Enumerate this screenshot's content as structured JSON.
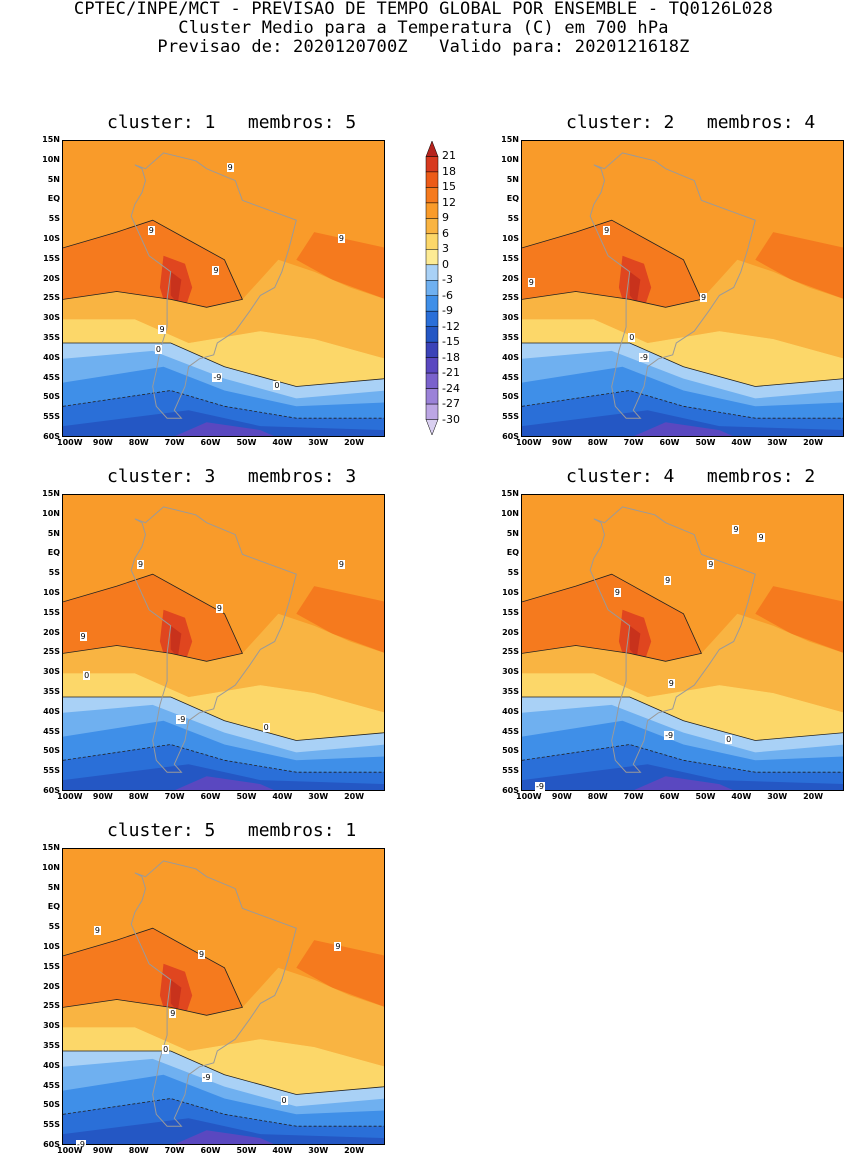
{
  "header": {
    "line1": "CPTEC/INPE/MCT - PREVISAO DE TEMPO GLOBAL POR ENSEMBLE - TQ0126L028",
    "line2": "Cluster Medio para a Temperatura (C) em 700 hPa",
    "line3": "Previsao de: 2020120700Z   Valido para: 2020121618Z"
  },
  "lat_labels": [
    "15N",
    "10N",
    "5N",
    "EQ",
    "5S",
    "10S",
    "15S",
    "20S",
    "25S",
    "30S",
    "35S",
    "40S",
    "45S",
    "50S",
    "55S",
    "60S"
  ],
  "lon_labels": [
    "100W",
    "90W",
    "80W",
    "70W",
    "60W",
    "50W",
    "40W",
    "30W",
    "20W"
  ],
  "legend": {
    "levels": [
      "21",
      "18",
      "15",
      "12",
      "9",
      "6",
      "3",
      "0",
      "-3",
      "-6",
      "-9",
      "-12",
      "-15",
      "-18",
      "-21",
      "-24",
      "-27",
      "-30"
    ],
    "colors": [
      "#b5231d",
      "#d73a1f",
      "#ec5b18",
      "#f57a1e",
      "#f99b2a",
      "#f9b442",
      "#fcd769",
      "#fdeb94",
      "#a9d1f6",
      "#6fb0f0",
      "#3f8fe8",
      "#2a6fd8",
      "#2457c4",
      "#3b43b8",
      "#5a48c0",
      "#7a62cc",
      "#9b82d8",
      "#bca6e4",
      "#d9cff0"
    ]
  },
  "panels": [
    {
      "title": "cluster: 1   membros: 5",
      "labels": [
        {
          "text": "9",
          "lat": 8,
          "lon": -53
        },
        {
          "text": "9",
          "lat": -8,
          "lon": -75
        },
        {
          "text": "9",
          "lat": -10,
          "lon": -22
        },
        {
          "text": "9",
          "lat": -18,
          "lon": -57
        },
        {
          "text": "9",
          "lat": -33,
          "lon": -72
        },
        {
          "text": "0",
          "lat": -38,
          "lon": -73
        },
        {
          "text": "-9",
          "lat": -45,
          "lon": -57
        },
        {
          "text": "0",
          "lat": -47,
          "lon": -40
        }
      ]
    },
    {
      "title": "cluster: 2   membros: 4",
      "labels": [
        {
          "text": "9",
          "lat": -8,
          "lon": -76
        },
        {
          "text": "9",
          "lat": -21,
          "lon": -97
        },
        {
          "text": "9",
          "lat": -25,
          "lon": -49
        },
        {
          "text": "0",
          "lat": -35,
          "lon": -69
        },
        {
          "text": "-9",
          "lat": -40,
          "lon": -66
        }
      ]
    },
    {
      "title": "cluster: 3   membros: 3",
      "labels": [
        {
          "text": "9",
          "lat": -3,
          "lon": -78
        },
        {
          "text": "9",
          "lat": -3,
          "lon": -22
        },
        {
          "text": "9",
          "lat": -14,
          "lon": -56
        },
        {
          "text": "9",
          "lat": -21,
          "lon": -94
        },
        {
          "text": "0",
          "lat": -31,
          "lon": -93
        },
        {
          "text": "-9",
          "lat": -42,
          "lon": -67
        },
        {
          "text": "0",
          "lat": -44,
          "lon": -43
        }
      ]
    },
    {
      "title": "cluster: 4   membros: 2",
      "labels": [
        {
          "text": "9",
          "lat": 6,
          "lon": -40
        },
        {
          "text": "9",
          "lat": 4,
          "lon": -33
        },
        {
          "text": "9",
          "lat": -3,
          "lon": -47
        },
        {
          "text": "9",
          "lat": -7,
          "lon": -59
        },
        {
          "text": "9",
          "lat": -10,
          "lon": -73
        },
        {
          "text": "9",
          "lat": -33,
          "lon": -58
        },
        {
          "text": "-9",
          "lat": -46,
          "lon": -59
        },
        {
          "text": "0",
          "lat": -47,
          "lon": -42
        },
        {
          "text": "-9",
          "lat": -59,
          "lon": -95
        }
      ]
    },
    {
      "title": "cluster: 5   membros: 1",
      "labels": [
        {
          "text": "9",
          "lat": -6,
          "lon": -90
        },
        {
          "text": "9",
          "lat": -10,
          "lon": -23
        },
        {
          "text": "9",
          "lat": -12,
          "lon": -61
        },
        {
          "text": "9",
          "lat": -27,
          "lon": -69
        },
        {
          "text": "0",
          "lat": -36,
          "lon": -71
        },
        {
          "text": "-9",
          "lat": -43,
          "lon": -60
        },
        {
          "text": "0",
          "lat": -49,
          "lon": -38
        },
        {
          "text": "-9",
          "lat": -60,
          "lon": -95
        }
      ]
    }
  ]
}
